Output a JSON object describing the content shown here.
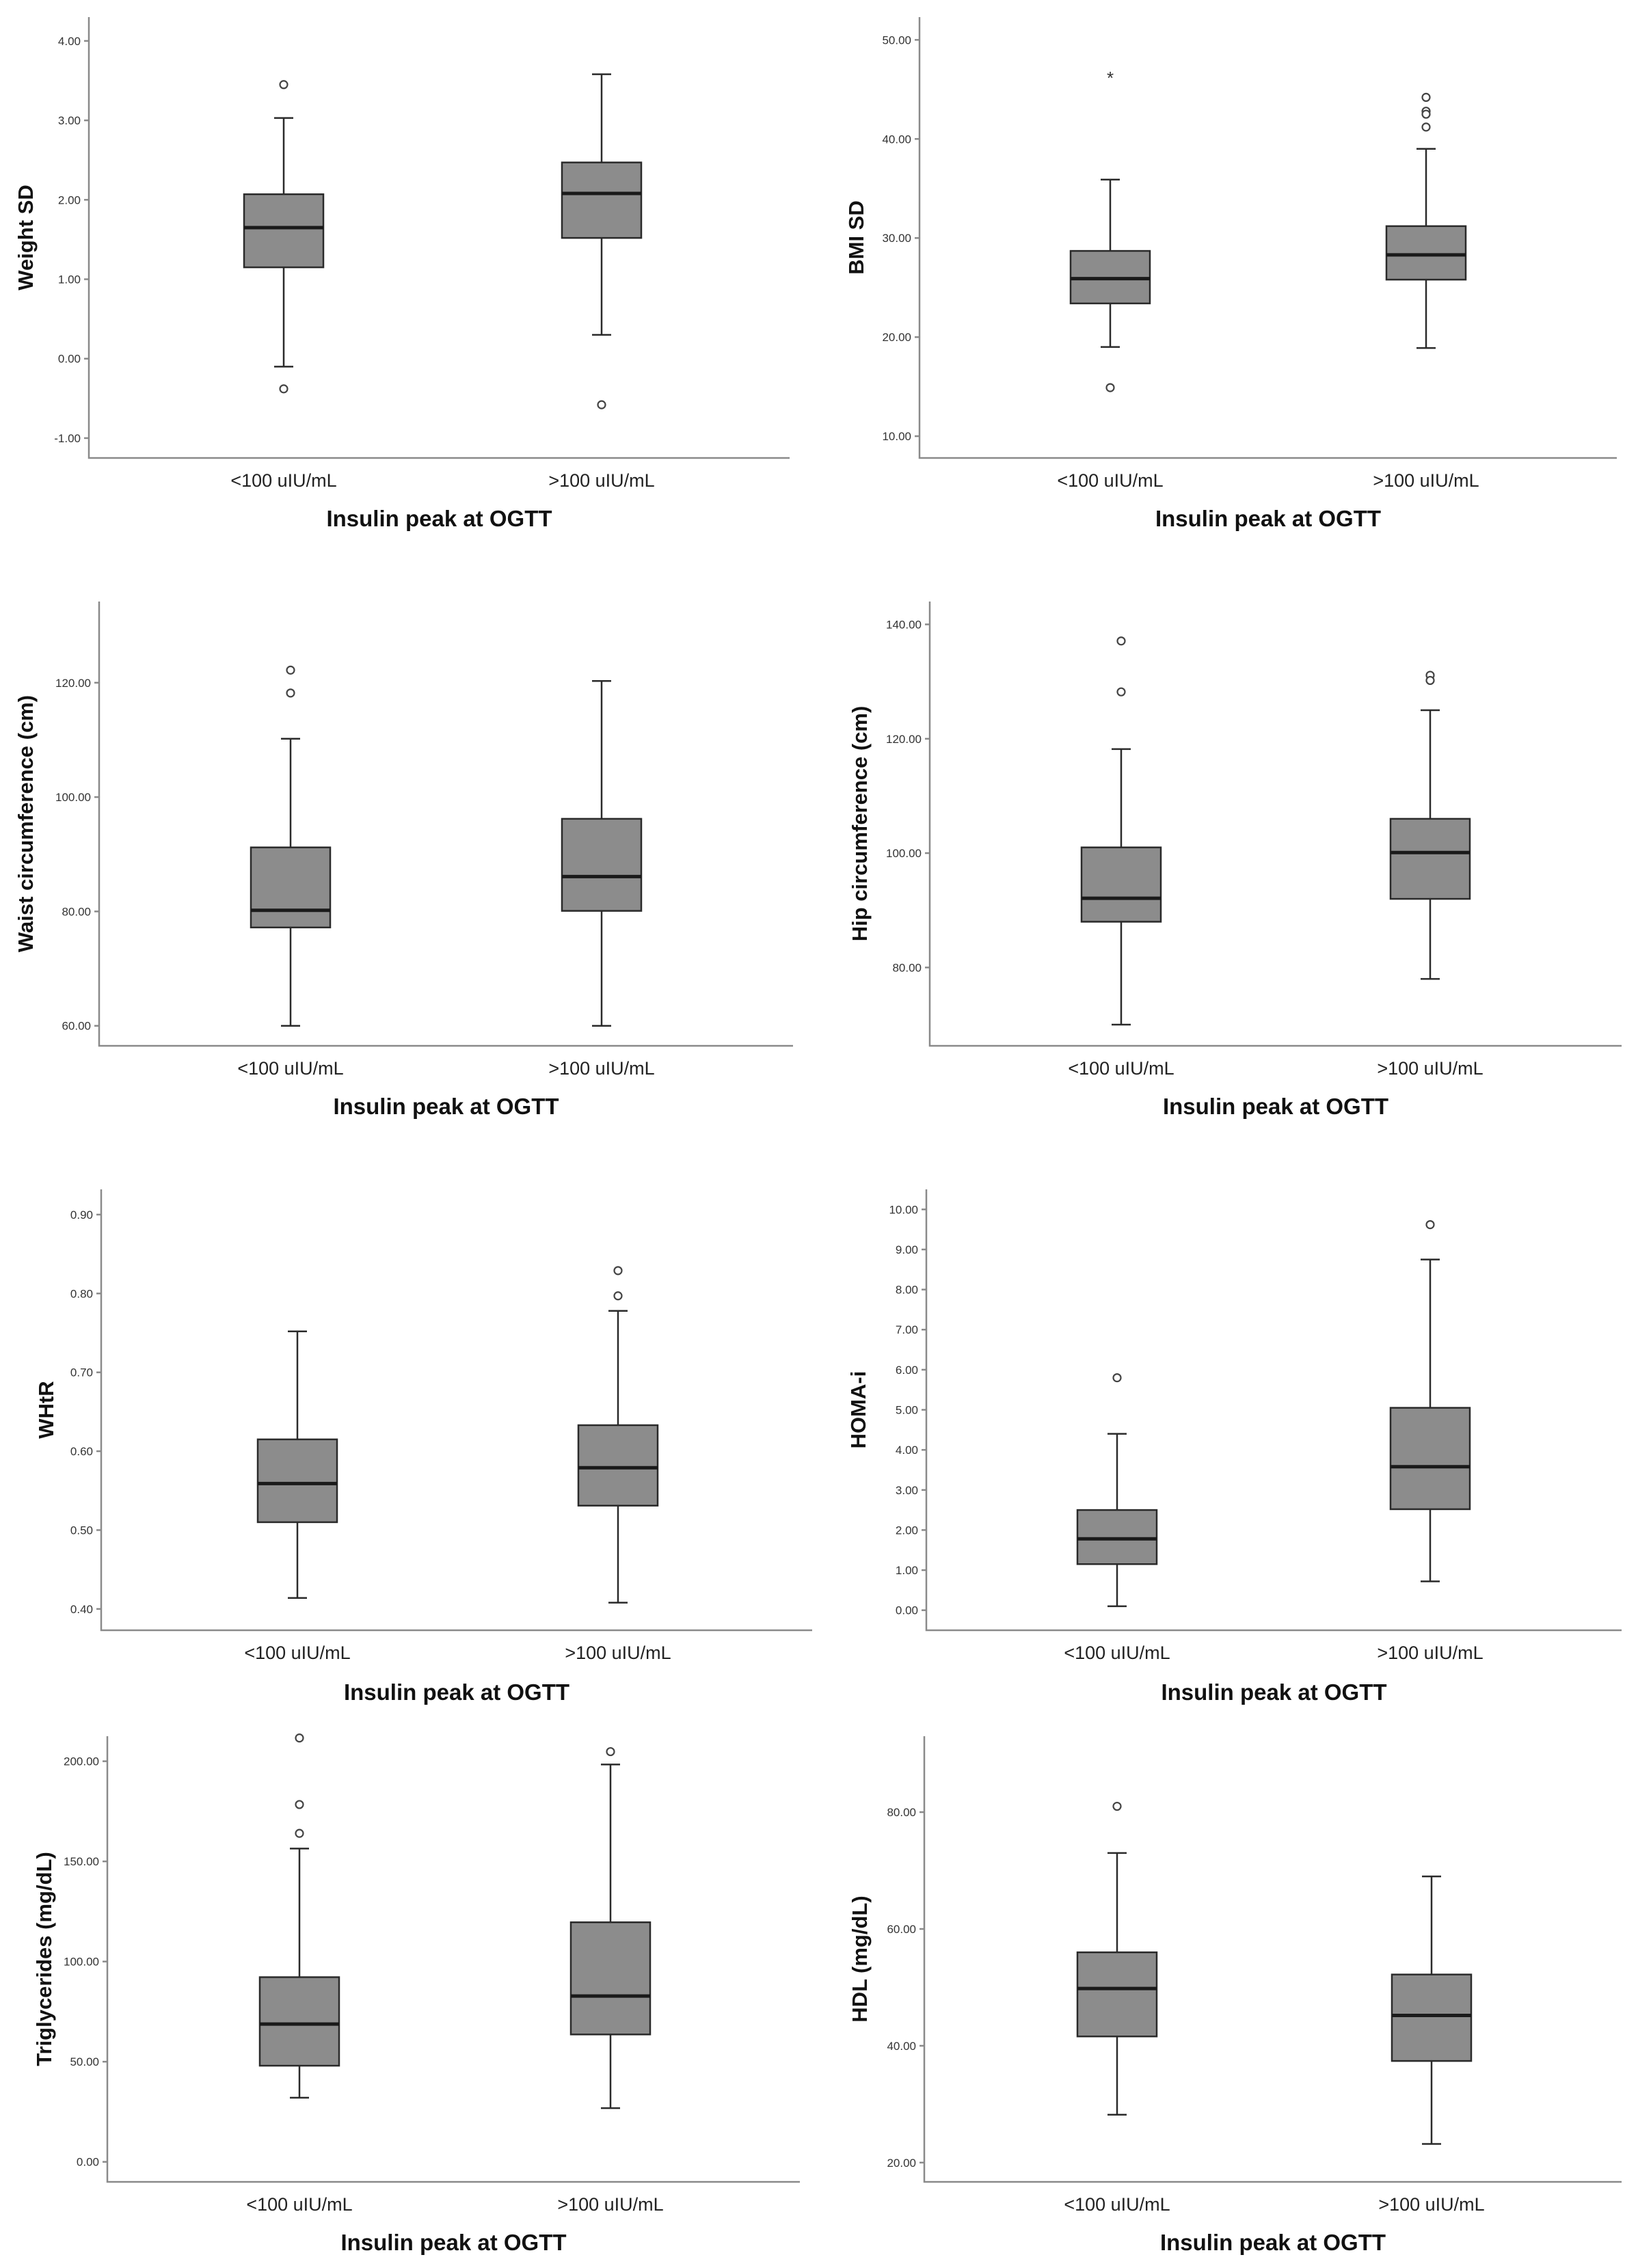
{
  "chart_data": [
    {
      "type": "box",
      "ylabel": "Weight SD",
      "xlabel": "Insulin peak at OGTT",
      "categories": [
        "<100 uIU/mL",
        ">100 uIU/mL"
      ],
      "yticks": [
        "-1.00",
        "0.00",
        "1.00",
        "2.00",
        "3.00",
        "4.00"
      ],
      "ylim": [
        -1.25,
        4.3
      ],
      "boxes": [
        {
          "min": -0.1,
          "q1": 1.15,
          "median": 1.65,
          "q3": 2.07,
          "max": 3.03,
          "outliers": [
            3.45,
            -0.38
          ],
          "extremes": []
        },
        {
          "min": 0.3,
          "q1": 1.52,
          "median": 2.08,
          "q3": 2.47,
          "max": 3.58,
          "outliers": [
            -0.58
          ],
          "extremes": []
        }
      ]
    },
    {
      "type": "box",
      "ylabel": "BMI SD",
      "xlabel": "Insulin peak at OGTT",
      "categories": [
        "<100 uIU/mL",
        ">100 uIU/mL"
      ],
      "yticks": [
        "10.00",
        "20.00",
        "30.00",
        "40.00",
        "50.00"
      ],
      "ylim": [
        7.8,
        52.3
      ],
      "boxes": [
        {
          "min": 19.0,
          "q1": 23.4,
          "median": 25.9,
          "q3": 28.7,
          "max": 35.9,
          "outliers": [
            14.9
          ],
          "extremes": [
            46.5
          ]
        },
        {
          "min": 18.9,
          "q1": 25.8,
          "median": 28.3,
          "q3": 31.2,
          "max": 39.0,
          "outliers": [
            44.2,
            42.8,
            42.5,
            41.2
          ],
          "extremes": []
        }
      ]
    },
    {
      "type": "box",
      "ylabel": "Waist circumference (cm)",
      "xlabel": "Insulin peak at OGTT",
      "categories": [
        "<100 uIU/mL",
        ">100 uIU/mL"
      ],
      "yticks": [
        "60.00",
        "80.00",
        "100.00",
        "120.00"
      ],
      "ylim": [
        56.5,
        134.2
      ],
      "boxes": [
        {
          "min": 60.0,
          "q1": 77.2,
          "median": 80.2,
          "q3": 91.2,
          "max": 110.2,
          "outliers": [
            122.2,
            118.2
          ],
          "extremes": []
        },
        {
          "min": 60.0,
          "q1": 80.1,
          "median": 86.1,
          "q3": 96.2,
          "max": 120.3,
          "outliers": [],
          "extremes": []
        }
      ]
    },
    {
      "type": "box",
      "ylabel": "Hip circumference (cm)",
      "xlabel": "Insulin peak at OGTT",
      "categories": [
        "<100 uIU/mL",
        ">100 uIU/mL"
      ],
      "yticks": [
        "80.00",
        "100.00",
        "120.00",
        "140.00"
      ],
      "ylim": [
        66.3,
        144.0
      ],
      "boxes": [
        {
          "min": 70.0,
          "q1": 88.0,
          "median": 92.1,
          "q3": 101.0,
          "max": 118.2,
          "outliers": [
            137.1,
            128.2
          ],
          "extremes": []
        },
        {
          "min": 78.0,
          "q1": 92.0,
          "median": 100.1,
          "q3": 106.0,
          "max": 125.0,
          "outliers": [
            131.1,
            130.2
          ],
          "extremes": []
        }
      ]
    },
    {
      "type": "box",
      "ylabel": "WHtR",
      "xlabel": "Insulin peak at OGTT",
      "categories": [
        "<100 uIU/mL",
        ">100 uIU/mL"
      ],
      "yticks": [
        "0.40",
        "0.50",
        "0.60",
        "0.70",
        "0.80",
        "0.90"
      ],
      "ylim": [
        0.373,
        0.932
      ],
      "boxes": [
        {
          "min": 0.414,
          "q1": 0.51,
          "median": 0.559,
          "q3": 0.615,
          "max": 0.752,
          "outliers": [],
          "extremes": []
        },
        {
          "min": 0.408,
          "q1": 0.531,
          "median": 0.579,
          "q3": 0.633,
          "max": 0.778,
          "outliers": [
            0.829,
            0.797
          ],
          "extremes": []
        }
      ]
    },
    {
      "type": "box",
      "ylabel": "HOMA-i",
      "xlabel": "Insulin peak at OGTT",
      "categories": [
        "<100 uIU/mL",
        ">100 uIU/mL"
      ],
      "yticks": [
        "0.00",
        "1.00",
        "2.00",
        "3.00",
        "4.00",
        "5.00",
        "6.00",
        "7.00",
        "8.00",
        "9.00",
        "10.00"
      ],
      "ylim": [
        -0.5,
        10.5
      ],
      "boxes": [
        {
          "min": 0.1,
          "q1": 1.15,
          "median": 1.78,
          "q3": 2.5,
          "max": 4.4,
          "outliers": [
            5.8
          ],
          "extremes": []
        },
        {
          "min": 0.72,
          "q1": 2.52,
          "median": 3.58,
          "q3": 5.05,
          "max": 8.75,
          "outliers": [
            9.62
          ],
          "extremes": []
        }
      ]
    },
    {
      "type": "box",
      "ylabel": "Triglycerides (mg/dL)",
      "xlabel": "Insulin peak at OGTT",
      "categories": [
        "<100 uIU/mL",
        ">100 uIU/mL"
      ],
      "yticks": [
        "0.00",
        "50.00",
        "100.00",
        "150.00",
        "200.00"
      ],
      "ylim": [
        -10.0,
        212.5
      ],
      "boxes": [
        {
          "min": 32.0,
          "q1": 48.0,
          "median": 68.8,
          "q3": 92.2,
          "max": 156.4,
          "outliers": [
            211.6,
            178.4,
            164.0
          ],
          "extremes": []
        },
        {
          "min": 26.8,
          "q1": 63.6,
          "median": 82.8,
          "q3": 119.6,
          "max": 198.4,
          "outliers": [
            204.8
          ],
          "extremes": []
        }
      ]
    },
    {
      "type": "box",
      "ylabel": "HDL (mg/dL)",
      "xlabel": "Insulin peak at OGTT",
      "categories": [
        "<100 uIU/mL",
        ">100 uIU/mL"
      ],
      "yticks": [
        "20.00",
        "40.00",
        "60.00",
        "80.00"
      ],
      "ylim": [
        16.7,
        93.0
      ],
      "boxes": [
        {
          "min": 28.2,
          "q1": 41.6,
          "median": 49.8,
          "q3": 56.0,
          "max": 73.0,
          "outliers": [
            81.0
          ],
          "extremes": []
        },
        {
          "min": 23.2,
          "q1": 37.4,
          "median": 45.2,
          "q3": 52.2,
          "max": 69.0,
          "outliers": [],
          "extremes": []
        }
      ]
    }
  ]
}
